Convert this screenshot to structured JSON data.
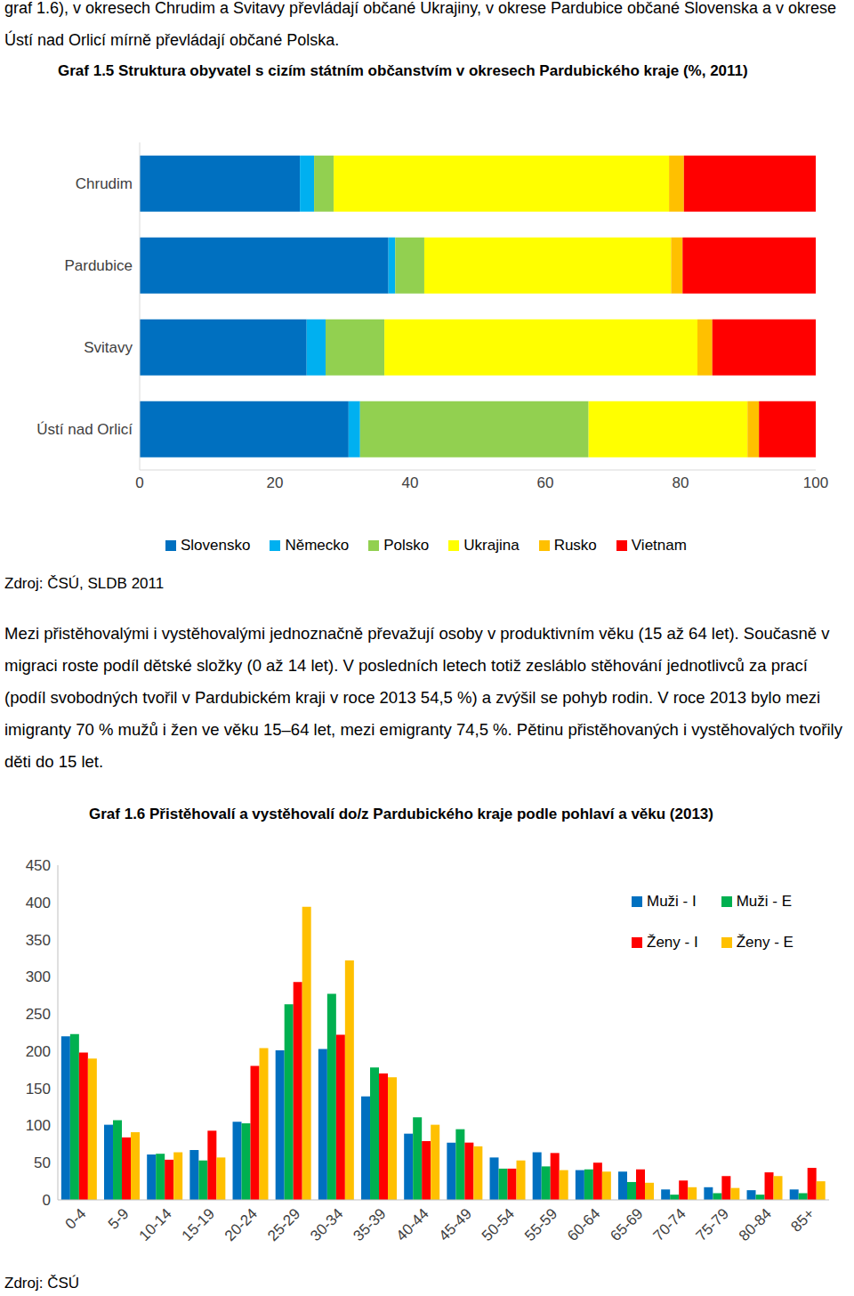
{
  "text": {
    "intro": "graf 1.6), v okresech Chrudim a Svitavy převládají občané Ukrajiny, v okrese Pardubice občané Slovenska a v okrese Ústí nad Orlicí mírně převládají občané Polska.",
    "paragraph": "Mezi přistěhovalými i vystěhovalými jednoznačně převažují osoby v produktivním věku (15 až 64 let). Současně v migraci roste podíl dětské složky (0 až 14 let). V posledních letech totiž zesláblo stěhování jednotlivců za prací (podíl svobodných tvořil v Pardubickém kraji v roce 2013 54,5 %) a zvýšil se pohyb rodin. V roce 2013 bylo mezi imigranty 70 % mužů i žen ve věku 15–64 let, mezi emigranty 74,5 %. Pětinu přistěhovaných i vystěhovalých tvořily děti do 15 let."
  },
  "chart_data": [
    {
      "type": "bar",
      "orientation": "horizontal",
      "stacked": true,
      "grid": false,
      "legend": "bottom",
      "title": "Graf 1.5 Struktura obyvatel s cizím státním občanstvím v okresech Pardubického kraje (%, 2011)",
      "annotations": [
        "Zdroj: ČSÚ, SLDB 2011"
      ],
      "categories": [
        "Chrudim",
        "Pardubice",
        "Svitavy",
        "Ústí nad Orlicí"
      ],
      "xlim": [
        0,
        100
      ],
      "xticks": [
        0,
        20,
        40,
        60,
        80,
        100
      ],
      "series": [
        {
          "name": "Slovensko",
          "color": "#0070c0",
          "values": [
            23.7,
            36.8,
            24.7,
            30.9
          ]
        },
        {
          "name": "Německo",
          "color": "#00b0f0",
          "values": [
            2.1,
            1.0,
            2.8,
            1.7
          ]
        },
        {
          "name": "Polsko",
          "color": "#92d050",
          "values": [
            2.9,
            4.3,
            8.7,
            33.8
          ]
        },
        {
          "name": "Ukrajina",
          "color": "#ffff00",
          "values": [
            49.6,
            36.5,
            46.3,
            23.5
          ]
        },
        {
          "name": "Rusko",
          "color": "#ffc000",
          "values": [
            2.2,
            1.7,
            2.2,
            1.7
          ]
        },
        {
          "name": "Vietnam",
          "color": "#ff0000",
          "values": [
            19.5,
            19.7,
            15.3,
            8.4
          ]
        }
      ]
    },
    {
      "type": "bar",
      "grid": false,
      "legend": "top-right",
      "title": "Graf 1.6 Přistěhovalí a vystěhovalí do/z Pardubického kraje podle pohlaví a věku (2013)",
      "annotations": [
        "Zdroj: ČSÚ"
      ],
      "categories": [
        "0-4",
        "5-9",
        "10-14",
        "15-19",
        "20-24",
        "25-29",
        "30-34",
        "35-39",
        "40-44",
        "45-49",
        "50-54",
        "55-59",
        "60-64",
        "65-69",
        "70-74",
        "75-79",
        "80-84",
        "85+"
      ],
      "ylim": [
        0,
        450
      ],
      "yticks": [
        0,
        50,
        100,
        150,
        200,
        250,
        300,
        350,
        400,
        450
      ],
      "series": [
        {
          "name": "Muži - I",
          "color": "#0070c0",
          "values": [
            220,
            101,
            61,
            67,
            105,
            201,
            203,
            139,
            89,
            77,
            57,
            64,
            40,
            38,
            14,
            17,
            13,
            14
          ]
        },
        {
          "name": "Muži - E",
          "color": "#00b050",
          "values": [
            223,
            107,
            62,
            53,
            103,
            263,
            277,
            178,
            111,
            95,
            42,
            45,
            41,
            24,
            7,
            9,
            7,
            9
          ]
        },
        {
          "name": "Ženy - I",
          "color": "#ff0000",
          "values": [
            198,
            84,
            54,
            93,
            180,
            293,
            222,
            170,
            79,
            77,
            42,
            63,
            50,
            41,
            26,
            32,
            37,
            43
          ]
        },
        {
          "name": "Ženy - E",
          "color": "#ffc000",
          "values": [
            190,
            91,
            64,
            57,
            204,
            394,
            322,
            165,
            101,
            72,
            53,
            40,
            38,
            23,
            17,
            16,
            32,
            25
          ]
        }
      ]
    }
  ]
}
